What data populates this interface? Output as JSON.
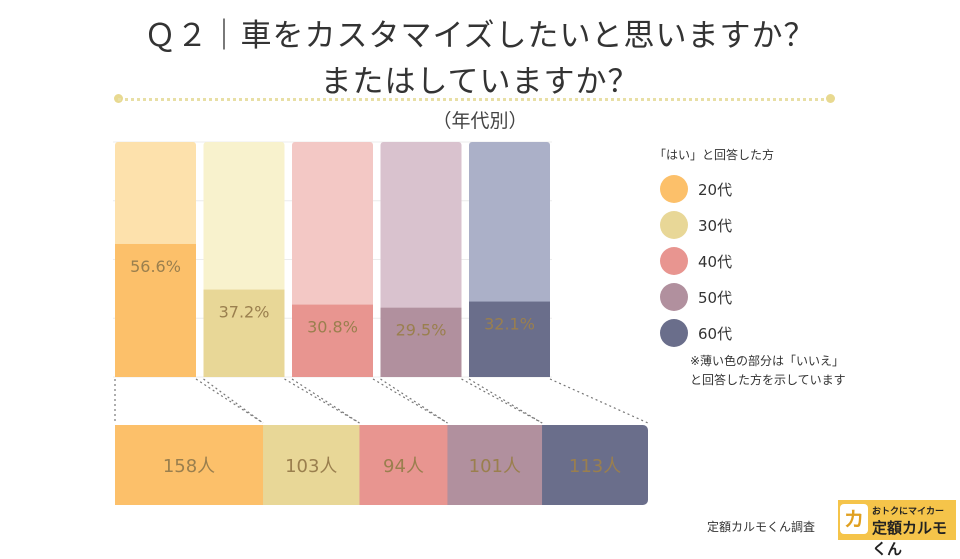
{
  "title_line1": "Ｑ２｜車をカスタマイズしたいと思いますか？",
  "title_line2": "またはしていますか？",
  "subtitle": "（年代別）",
  "legend_title": "「はい」と回答した方",
  "note_line1": "※薄い色の部分は「いいえ」",
  "note_line2": "と回答した方を示しています",
  "credit": "定額カルモくん調査",
  "logo_top": "おトクにマイカー",
  "logo_bottom": "定額カルモくん",
  "logo_icon": "カ",
  "chart_data": {
    "type": "bar",
    "stacked": true,
    "unit": "%",
    "categories": [
      "20代",
      "30代",
      "40代",
      "50代",
      "60代"
    ],
    "yes_values": [
      56.6,
      37.2,
      30.8,
      29.5,
      32.1
    ],
    "yes_labels": [
      "56.6%",
      "37.2%",
      "30.8%",
      "29.5%",
      "32.1%"
    ],
    "ylim": [
      0,
      100
    ],
    "respondents": [
      158,
      103,
      94,
      101,
      113
    ],
    "respondent_labels": [
      "158人",
      "103人",
      "94人",
      "101人",
      "113人"
    ],
    "colors_dark": [
      "#fcc06a",
      "#e8d797",
      "#e89590",
      "#b1909e",
      "#6a6e8b"
    ],
    "colors_light": [
      "#fde1ac",
      "#f8f2cd",
      "#f3c8c5",
      "#d9c2ce",
      "#abb0c8"
    ],
    "label_color": "#9a7f4e"
  }
}
